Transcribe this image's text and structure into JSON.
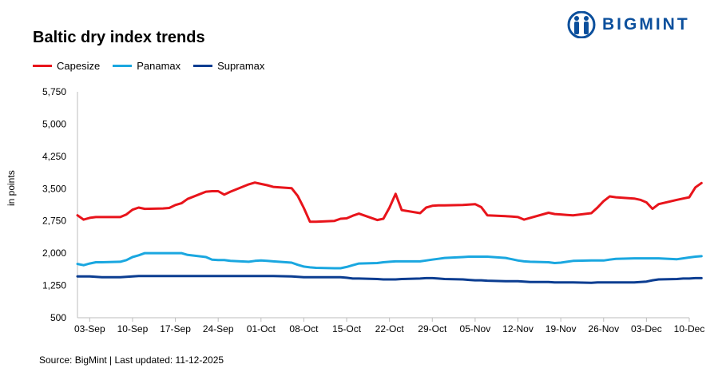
{
  "brand": {
    "name": "BIGMINT",
    "color": "#0b4f9c"
  },
  "source_text": "Source: BigMint | Last updated: 11-12-2025",
  "chart_data": {
    "type": "line",
    "title": "Baltic dry index trends",
    "ylabel": "in points",
    "xlabel": "",
    "ylim": [
      500,
      5750
    ],
    "yticks": [
      500,
      1250,
      2000,
      2750,
      3500,
      4250,
      5000,
      5750
    ],
    "ytick_labels": [
      "500",
      "1,250",
      "2,000",
      "2,750",
      "3,500",
      "4,250",
      "5,000",
      "5,750"
    ],
    "x_start": "2025-09-01",
    "x_end": "2025-12-10",
    "xtick_labels": [
      "03-Sep",
      "10-Sep",
      "17-Sep",
      "24-Sep",
      "01-Oct",
      "08-Oct",
      "15-Oct",
      "22-Oct",
      "29-Oct",
      "05-Nov",
      "12-Nov",
      "19-Nov",
      "26-Nov",
      "03-Dec",
      "10-Dec"
    ],
    "xtick_dates": [
      "2025-09-03",
      "2025-09-10",
      "2025-09-17",
      "2025-09-24",
      "2025-10-01",
      "2025-10-08",
      "2025-10-15",
      "2025-10-22",
      "2025-10-29",
      "2025-11-05",
      "2025-11-12",
      "2025-11-19",
      "2025-11-26",
      "2025-12-03",
      "2025-12-10"
    ],
    "legend_position": "top-left",
    "grid": false,
    "series": [
      {
        "name": "Capesize",
        "color": "#e8141b",
        "points": [
          [
            "2025-09-01",
            2880
          ],
          [
            "2025-09-02",
            2780
          ],
          [
            "2025-09-03",
            2820
          ],
          [
            "2025-09-04",
            2840
          ],
          [
            "2025-09-05",
            2840
          ],
          [
            "2025-09-08",
            2840
          ],
          [
            "2025-09-09",
            2900
          ],
          [
            "2025-09-10",
            3010
          ],
          [
            "2025-09-11",
            3060
          ],
          [
            "2025-09-12",
            3030
          ],
          [
            "2025-09-15",
            3040
          ],
          [
            "2025-09-16",
            3050
          ],
          [
            "2025-09-17",
            3120
          ],
          [
            "2025-09-18",
            3160
          ],
          [
            "2025-09-19",
            3260
          ],
          [
            "2025-09-22",
            3430
          ],
          [
            "2025-09-23",
            3440
          ],
          [
            "2025-09-24",
            3440
          ],
          [
            "2025-09-25",
            3360
          ],
          [
            "2025-09-26",
            3430
          ],
          [
            "2025-09-29",
            3600
          ],
          [
            "2025-09-30",
            3640
          ],
          [
            "2025-10-01",
            3610
          ],
          [
            "2025-10-02",
            3580
          ],
          [
            "2025-10-03",
            3540
          ],
          [
            "2025-10-06",
            3510
          ],
          [
            "2025-10-07",
            3330
          ],
          [
            "2025-10-08",
            3050
          ],
          [
            "2025-10-09",
            2730
          ],
          [
            "2025-10-10",
            2730
          ],
          [
            "2025-10-13",
            2750
          ],
          [
            "2025-10-14",
            2800
          ],
          [
            "2025-10-15",
            2810
          ],
          [
            "2025-10-16",
            2870
          ],
          [
            "2025-10-17",
            2920
          ],
          [
            "2025-10-20",
            2770
          ],
          [
            "2025-10-21",
            2800
          ],
          [
            "2025-10-22",
            3060
          ],
          [
            "2025-10-23",
            3380
          ],
          [
            "2025-10-24",
            3000
          ],
          [
            "2025-10-27",
            2930
          ],
          [
            "2025-10-28",
            3060
          ],
          [
            "2025-10-29",
            3100
          ],
          [
            "2025-10-30",
            3110
          ],
          [
            "2025-10-31",
            3110
          ],
          [
            "2025-11-03",
            3120
          ],
          [
            "2025-11-04",
            3130
          ],
          [
            "2025-11-05",
            3140
          ],
          [
            "2025-11-06",
            3070
          ],
          [
            "2025-11-07",
            2880
          ],
          [
            "2025-11-10",
            2860
          ],
          [
            "2025-11-11",
            2850
          ],
          [
            "2025-11-12",
            2840
          ],
          [
            "2025-11-13",
            2780
          ],
          [
            "2025-11-14",
            2820
          ],
          [
            "2025-11-17",
            2940
          ],
          [
            "2025-11-18",
            2910
          ],
          [
            "2025-11-19",
            2900
          ],
          [
            "2025-11-20",
            2890
          ],
          [
            "2025-11-21",
            2880
          ],
          [
            "2025-11-24",
            2930
          ],
          [
            "2025-11-25",
            3060
          ],
          [
            "2025-11-26",
            3210
          ],
          [
            "2025-11-27",
            3320
          ],
          [
            "2025-11-28",
            3300
          ],
          [
            "2025-12-01",
            3270
          ],
          [
            "2025-12-02",
            3240
          ],
          [
            "2025-12-03",
            3180
          ],
          [
            "2025-12-04",
            3030
          ],
          [
            "2025-12-05",
            3140
          ],
          [
            "2025-12-08",
            3240
          ],
          [
            "2025-12-09",
            3270
          ],
          [
            "2025-12-10",
            3300
          ],
          [
            "2025-12-11",
            3530
          ],
          [
            "2025-12-12",
            3630
          ]
        ]
      },
      {
        "name": "Panamax",
        "color": "#1aa7e0",
        "points": [
          [
            "2025-09-01",
            1750
          ],
          [
            "2025-09-02",
            1720
          ],
          [
            "2025-09-03",
            1760
          ],
          [
            "2025-09-04",
            1790
          ],
          [
            "2025-09-05",
            1790
          ],
          [
            "2025-09-08",
            1800
          ],
          [
            "2025-09-09",
            1840
          ],
          [
            "2025-09-10",
            1910
          ],
          [
            "2025-09-11",
            1950
          ],
          [
            "2025-09-12",
            2000
          ],
          [
            "2025-09-15",
            2000
          ],
          [
            "2025-09-16",
            2000
          ],
          [
            "2025-09-17",
            2000
          ],
          [
            "2025-09-18",
            2000
          ],
          [
            "2025-09-19",
            1960
          ],
          [
            "2025-09-22",
            1910
          ],
          [
            "2025-09-23",
            1850
          ],
          [
            "2025-09-24",
            1840
          ],
          [
            "2025-09-25",
            1840
          ],
          [
            "2025-09-26",
            1820
          ],
          [
            "2025-09-29",
            1800
          ],
          [
            "2025-09-30",
            1820
          ],
          [
            "2025-10-01",
            1830
          ],
          [
            "2025-10-02",
            1820
          ],
          [
            "2025-10-03",
            1810
          ],
          [
            "2025-10-06",
            1780
          ],
          [
            "2025-10-07",
            1730
          ],
          [
            "2025-10-08",
            1690
          ],
          [
            "2025-10-09",
            1670
          ],
          [
            "2025-10-10",
            1660
          ],
          [
            "2025-10-13",
            1650
          ],
          [
            "2025-10-14",
            1650
          ],
          [
            "2025-10-15",
            1680
          ],
          [
            "2025-10-16",
            1720
          ],
          [
            "2025-10-17",
            1760
          ],
          [
            "2025-10-20",
            1770
          ],
          [
            "2025-10-21",
            1790
          ],
          [
            "2025-10-22",
            1800
          ],
          [
            "2025-10-23",
            1810
          ],
          [
            "2025-10-24",
            1810
          ],
          [
            "2025-10-27",
            1810
          ],
          [
            "2025-10-28",
            1830
          ],
          [
            "2025-10-29",
            1850
          ],
          [
            "2025-10-30",
            1870
          ],
          [
            "2025-10-31",
            1890
          ],
          [
            "2025-11-03",
            1910
          ],
          [
            "2025-11-04",
            1920
          ],
          [
            "2025-11-05",
            1920
          ],
          [
            "2025-11-06",
            1920
          ],
          [
            "2025-11-07",
            1920
          ],
          [
            "2025-11-10",
            1890
          ],
          [
            "2025-11-11",
            1860
          ],
          [
            "2025-11-12",
            1830
          ],
          [
            "2025-11-13",
            1810
          ],
          [
            "2025-11-14",
            1800
          ],
          [
            "2025-11-17",
            1790
          ],
          [
            "2025-11-18",
            1770
          ],
          [
            "2025-11-19",
            1780
          ],
          [
            "2025-11-20",
            1800
          ],
          [
            "2025-11-21",
            1820
          ],
          [
            "2025-11-24",
            1830
          ],
          [
            "2025-11-25",
            1830
          ],
          [
            "2025-11-26",
            1830
          ],
          [
            "2025-11-27",
            1850
          ],
          [
            "2025-11-28",
            1870
          ],
          [
            "2025-12-01",
            1880
          ],
          [
            "2025-12-02",
            1880
          ],
          [
            "2025-12-03",
            1880
          ],
          [
            "2025-12-04",
            1880
          ],
          [
            "2025-12-05",
            1880
          ],
          [
            "2025-12-08",
            1860
          ],
          [
            "2025-12-09",
            1880
          ],
          [
            "2025-12-10",
            1900
          ],
          [
            "2025-12-11",
            1920
          ],
          [
            "2025-12-12",
            1930
          ]
        ]
      },
      {
        "name": "Supramax",
        "color": "#0b3d91",
        "points": [
          [
            "2025-09-01",
            1460
          ],
          [
            "2025-09-02",
            1460
          ],
          [
            "2025-09-03",
            1460
          ],
          [
            "2025-09-04",
            1450
          ],
          [
            "2025-09-05",
            1440
          ],
          [
            "2025-09-08",
            1440
          ],
          [
            "2025-09-09",
            1450
          ],
          [
            "2025-09-10",
            1460
          ],
          [
            "2025-09-11",
            1470
          ],
          [
            "2025-09-12",
            1470
          ],
          [
            "2025-09-15",
            1470
          ],
          [
            "2025-09-16",
            1470
          ],
          [
            "2025-09-17",
            1470
          ],
          [
            "2025-09-18",
            1470
          ],
          [
            "2025-09-19",
            1470
          ],
          [
            "2025-09-22",
            1470
          ],
          [
            "2025-09-23",
            1470
          ],
          [
            "2025-09-24",
            1470
          ],
          [
            "2025-09-25",
            1470
          ],
          [
            "2025-09-26",
            1470
          ],
          [
            "2025-09-29",
            1470
          ],
          [
            "2025-09-30",
            1470
          ],
          [
            "2025-10-01",
            1470
          ],
          [
            "2025-10-02",
            1470
          ],
          [
            "2025-10-03",
            1470
          ],
          [
            "2025-10-06",
            1460
          ],
          [
            "2025-10-07",
            1450
          ],
          [
            "2025-10-08",
            1440
          ],
          [
            "2025-10-09",
            1440
          ],
          [
            "2025-10-10",
            1440
          ],
          [
            "2025-10-13",
            1440
          ],
          [
            "2025-10-14",
            1440
          ],
          [
            "2025-10-15",
            1430
          ],
          [
            "2025-10-16",
            1410
          ],
          [
            "2025-10-17",
            1410
          ],
          [
            "2025-10-20",
            1400
          ],
          [
            "2025-10-21",
            1390
          ],
          [
            "2025-10-22",
            1390
          ],
          [
            "2025-10-23",
            1390
          ],
          [
            "2025-10-24",
            1400
          ],
          [
            "2025-10-27",
            1410
          ],
          [
            "2025-10-28",
            1420
          ],
          [
            "2025-10-29",
            1420
          ],
          [
            "2025-10-30",
            1410
          ],
          [
            "2025-10-31",
            1400
          ],
          [
            "2025-11-03",
            1390
          ],
          [
            "2025-11-04",
            1380
          ],
          [
            "2025-11-05",
            1370
          ],
          [
            "2025-11-06",
            1370
          ],
          [
            "2025-11-07",
            1360
          ],
          [
            "2025-11-10",
            1350
          ],
          [
            "2025-11-11",
            1350
          ],
          [
            "2025-11-12",
            1350
          ],
          [
            "2025-11-13",
            1340
          ],
          [
            "2025-11-14",
            1330
          ],
          [
            "2025-11-17",
            1330
          ],
          [
            "2025-11-18",
            1320
          ],
          [
            "2025-11-19",
            1320
          ],
          [
            "2025-11-20",
            1320
          ],
          [
            "2025-11-21",
            1320
          ],
          [
            "2025-11-24",
            1310
          ],
          [
            "2025-11-25",
            1320
          ],
          [
            "2025-11-26",
            1320
          ],
          [
            "2025-11-27",
            1320
          ],
          [
            "2025-11-28",
            1320
          ],
          [
            "2025-12-01",
            1320
          ],
          [
            "2025-12-02",
            1330
          ],
          [
            "2025-12-03",
            1340
          ],
          [
            "2025-12-04",
            1370
          ],
          [
            "2025-12-05",
            1390
          ],
          [
            "2025-12-08",
            1400
          ],
          [
            "2025-12-09",
            1410
          ],
          [
            "2025-12-10",
            1410
          ],
          [
            "2025-12-11",
            1420
          ],
          [
            "2025-12-12",
            1420
          ]
        ]
      }
    ]
  }
}
